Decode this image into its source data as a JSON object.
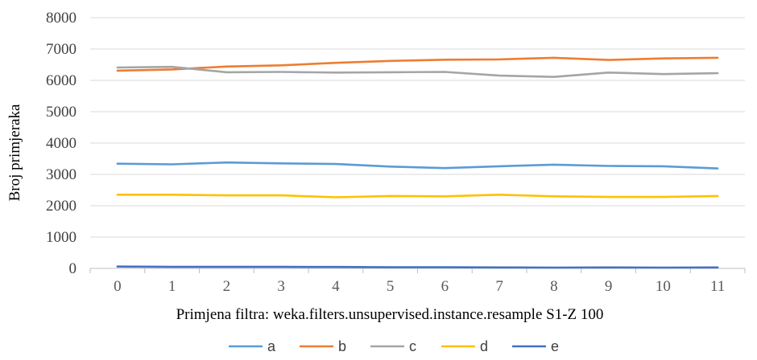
{
  "chart_data": {
    "type": "line",
    "title": "",
    "xlabel": "Primjena filtra: weka.filters.unsupervised.instance.resample S1-Z 100",
    "ylabel": "Broj primjeraka",
    "x": [
      "0",
      "1",
      "2",
      "3",
      "4",
      "5",
      "6",
      "7",
      "8",
      "9",
      "10",
      "11"
    ],
    "ylim": [
      0,
      8000
    ],
    "yticks": [
      "0",
      "1000",
      "2000",
      "3000",
      "4000",
      "5000",
      "6000",
      "7000",
      "8000"
    ],
    "grid": true,
    "legend_position": "bottom",
    "series": [
      {
        "name": "a",
        "color": "#5b9bd5",
        "values": [
          3340,
          3320,
          3380,
          3350,
          3330,
          3250,
          3200,
          3260,
          3310,
          3270,
          3260,
          3190
        ]
      },
      {
        "name": "b",
        "color": "#ed7d31",
        "values": [
          6310,
          6350,
          6440,
          6480,
          6560,
          6620,
          6660,
          6670,
          6720,
          6650,
          6700,
          6720
        ]
      },
      {
        "name": "c",
        "color": "#a5a5a5",
        "values": [
          6410,
          6430,
          6260,
          6270,
          6250,
          6260,
          6270,
          6150,
          6110,
          6250,
          6200,
          6230
        ]
      },
      {
        "name": "d",
        "color": "#ffc000",
        "values": [
          2350,
          2350,
          2330,
          2330,
          2270,
          2310,
          2300,
          2350,
          2300,
          2280,
          2280,
          2310
        ]
      },
      {
        "name": "e",
        "color": "#4472c4",
        "values": [
          60,
          50,
          50,
          50,
          45,
          35,
          35,
          30,
          25,
          30,
          25,
          30
        ]
      }
    ]
  }
}
